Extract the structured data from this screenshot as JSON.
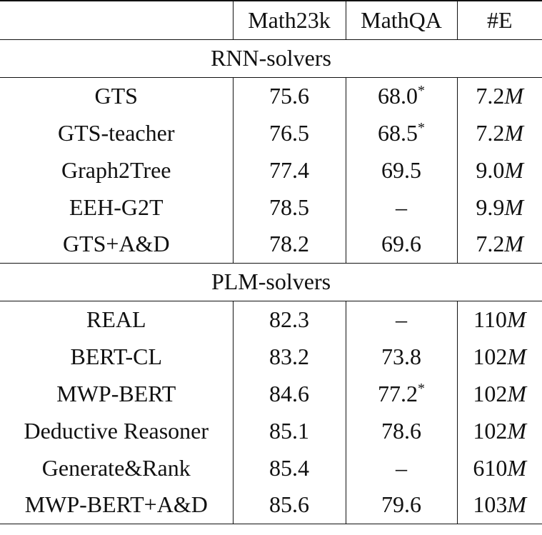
{
  "table": {
    "columns": [
      "",
      "Math23k",
      "MathQA",
      "#E"
    ],
    "sections": [
      {
        "title": "RNN-solvers",
        "rows": [
          {
            "model": "GTS",
            "math23k": "75.6",
            "math23k_bold": false,
            "mathqa": "68.0",
            "mathqa_star": "*",
            "mathqa_bold": false,
            "params_num": "7.2",
            "params_unit": "M"
          },
          {
            "model": "GTS-teacher",
            "math23k": "76.5",
            "math23k_bold": false,
            "mathqa": "68.5",
            "mathqa_star": "*",
            "mathqa_bold": false,
            "params_num": "7.2",
            "params_unit": "M"
          },
          {
            "model": "Graph2Tree",
            "math23k": "77.4",
            "math23k_bold": false,
            "mathqa": "69.5",
            "mathqa_star": "",
            "mathqa_bold": false,
            "params_num": "9.0",
            "params_unit": "M"
          },
          {
            "model": "EEH-G2T",
            "math23k": "78.5",
            "math23k_bold": true,
            "mathqa": "–",
            "mathqa_star": "",
            "mathqa_bold": false,
            "params_num": "9.9",
            "params_unit": "M"
          },
          {
            "model": "GTS+A&D",
            "math23k": "78.2",
            "math23k_bold": false,
            "mathqa": "69.6",
            "mathqa_star": "",
            "mathqa_bold": true,
            "params_num": "7.2",
            "params_unit": "M"
          }
        ]
      },
      {
        "title": "PLM-solvers",
        "rows": [
          {
            "model": "REAL",
            "math23k": "82.3",
            "math23k_bold": false,
            "mathqa": "–",
            "mathqa_star": "",
            "mathqa_bold": false,
            "params_num": "110",
            "params_unit": "M"
          },
          {
            "model": "BERT-CL",
            "math23k": "83.2",
            "math23k_bold": false,
            "mathqa": "73.8",
            "mathqa_star": "",
            "mathqa_bold": false,
            "params_num": "102",
            "params_unit": "M"
          },
          {
            "model": "MWP-BERT",
            "math23k": "84.6",
            "math23k_bold": false,
            "mathqa": "77.2",
            "mathqa_star": "*",
            "mathqa_bold": false,
            "params_num": "102",
            "params_unit": "M"
          },
          {
            "model": "Deductive Reasoner",
            "math23k": "85.1",
            "math23k_bold": false,
            "mathqa": "78.6",
            "mathqa_star": "",
            "mathqa_bold": false,
            "params_num": "102",
            "params_unit": "M"
          },
          {
            "model": "Generate&Rank",
            "math23k": "85.4",
            "math23k_bold": false,
            "mathqa": "–",
            "mathqa_star": "",
            "mathqa_bold": false,
            "params_num": "610",
            "params_unit": "M"
          },
          {
            "model": "MWP-BERT+A&D",
            "math23k": "85.6",
            "math23k_bold": true,
            "mathqa": "79.6",
            "mathqa_star": "",
            "mathqa_bold": true,
            "params_num": "103",
            "params_unit": "M"
          }
        ]
      }
    ]
  }
}
